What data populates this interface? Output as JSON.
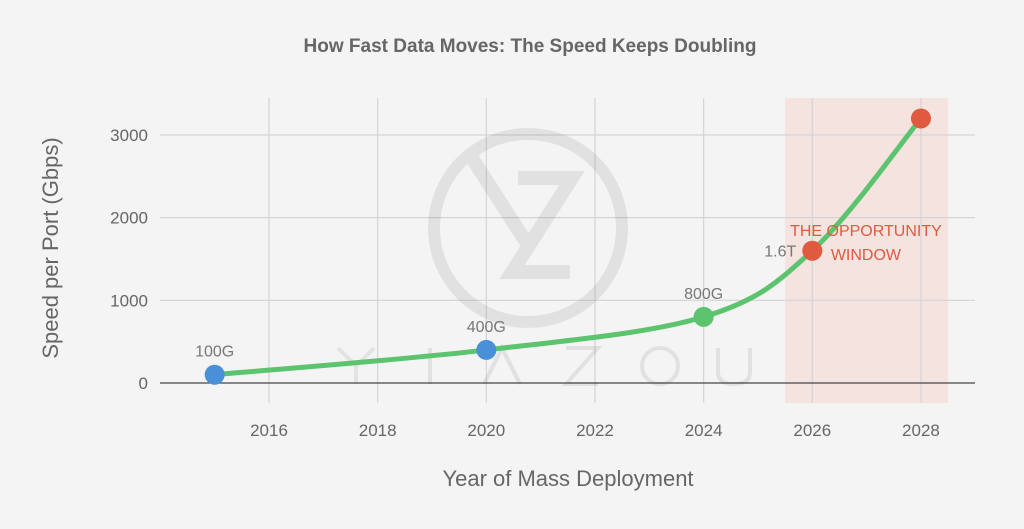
{
  "chart_data": {
    "type": "line",
    "title": "How Fast Data Moves: The Speed Keeps Doubling",
    "xlabel": "Year of Mass Deployment",
    "ylabel": "Speed per Port (Gbps)",
    "xlim": [
      2014,
      2029
    ],
    "ylim": [
      -250,
      3450
    ],
    "x_ticks": [
      2016,
      2018,
      2020,
      2022,
      2024,
      2026,
      2028
    ],
    "y_ticks": [
      0,
      1000,
      2000,
      3000
    ],
    "grid": true,
    "series": [
      {
        "x": [
          2015,
          2020,
          2024,
          2026,
          2028
        ],
        "y": [
          100,
          400,
          800,
          1600,
          3200
        ],
        "labels": [
          "100G",
          "400G",
          "800G",
          "1.6T",
          ""
        ],
        "marker_colors": [
          "#4a90d9",
          "#4a90d9",
          "#5cc46e",
          "#e05a3f",
          "#e05a3f"
        ],
        "line_color": "#5cc46e"
      }
    ],
    "highlight_region": {
      "x": [
        2025.5,
        2028.5
      ],
      "color": "#f5e3df"
    },
    "annotation": {
      "text_lines": [
        "THE OPPORTUNITY",
        "WINDOW"
      ],
      "x": 2027.3,
      "y": 1850,
      "color": "#e05a3f"
    },
    "watermark": "YIAZOU"
  }
}
